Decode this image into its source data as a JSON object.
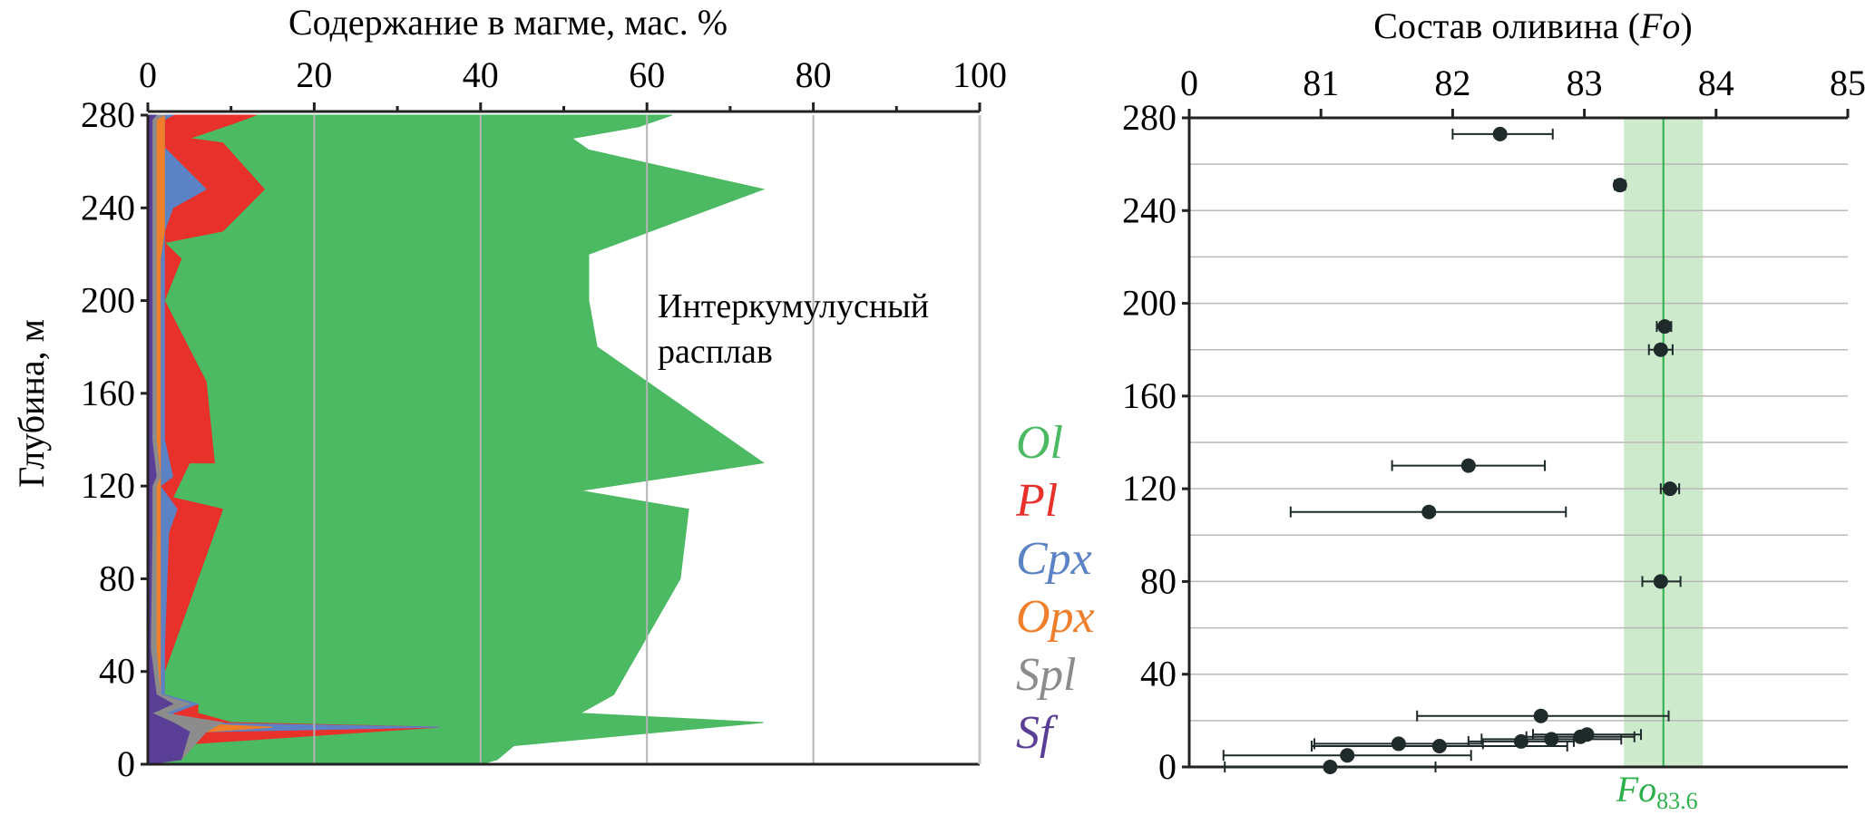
{
  "chart_data": [
    {
      "type": "area",
      "title": "",
      "xlabel": "Содержание в магме, мас. %",
      "ylabel": "Глубина, м",
      "xlim": [
        0,
        100
      ],
      "ylim": [
        0,
        280
      ],
      "x_ticks": [
        "0",
        "20",
        "40",
        "60",
        "80",
        "100"
      ],
      "y_ticks": [
        "0",
        "40",
        "80",
        "120",
        "160",
        "200",
        "240",
        "280"
      ],
      "annotation": [
        "Интеркумулусный",
        "расплав"
      ],
      "legend_placement": "right",
      "stacking": "cumulative, boundary values in wt. %",
      "series": [
        {
          "name": "Sf",
          "color": "#5b3f96",
          "points": [
            [
              0,
              0
            ],
            [
              4,
              2
            ],
            [
              5,
              14
            ],
            [
              3,
              18
            ],
            [
              0.5,
              22
            ],
            [
              3,
              26
            ],
            [
              1,
              30
            ],
            [
              0.3,
              50
            ],
            [
              0.5,
              100
            ],
            [
              0.5,
              116
            ],
            [
              0.5,
              120
            ],
            [
              1,
              124
            ],
            [
              0.5,
              140
            ],
            [
              0.5,
              180
            ],
            [
              0.5,
              240
            ],
            [
              0.5,
              278
            ],
            [
              1,
              280
            ]
          ]
        },
        {
          "name": "Spl",
          "color": "#8c8c8c",
          "points": [
            [
              0,
              0
            ],
            [
              4,
              2
            ],
            [
              7,
              14
            ],
            [
              9,
              18
            ],
            [
              2,
              22
            ],
            [
              5,
              26
            ],
            [
              1.5,
              30
            ],
            [
              1,
              50
            ],
            [
              1,
              100
            ],
            [
              1,
              116
            ],
            [
              1,
              120
            ],
            [
              1.5,
              124
            ],
            [
              1,
              140
            ],
            [
              1,
              180
            ],
            [
              1,
              240
            ],
            [
              1,
              278
            ],
            [
              2,
              280
            ]
          ]
        },
        {
          "name": "Opx",
          "color": "#ef7f2b",
          "points": [
            [
              0,
              0
            ],
            [
              4,
              2
            ],
            [
              7,
              14
            ],
            [
              15,
              16
            ],
            [
              3,
              18
            ],
            [
              2,
              22
            ],
            [
              5,
              26
            ],
            [
              1.5,
              30
            ],
            [
              1.5,
              50
            ],
            [
              1.5,
              100
            ],
            [
              1.5,
              116
            ],
            [
              1.5,
              120
            ],
            [
              1.5,
              124
            ],
            [
              1.5,
              140
            ],
            [
              1.5,
              180
            ],
            [
              1.5,
              218
            ],
            [
              2,
              230
            ],
            [
              2,
              240
            ],
            [
              2,
              252
            ],
            [
              2,
              266
            ],
            [
              2,
              278
            ],
            [
              2,
              280
            ]
          ]
        },
        {
          "name": "Cpx",
          "color": "#5b82c4",
          "points": [
            [
              0,
              0
            ],
            [
              4,
              2
            ],
            [
              7,
              14
            ],
            [
              35,
              16
            ],
            [
              3,
              18
            ],
            [
              3,
              22
            ],
            [
              6,
              26
            ],
            [
              2,
              30
            ],
            [
              2,
              50
            ],
            [
              2.5,
              100
            ],
            [
              3.5,
              110
            ],
            [
              1.5,
              120
            ],
            [
              3,
              124
            ],
            [
              2,
              140
            ],
            [
              2,
              180
            ],
            [
              2,
              218
            ],
            [
              2,
              230
            ],
            [
              3,
              240
            ],
            [
              7,
              248
            ],
            [
              2,
              266
            ],
            [
              2,
              278
            ],
            [
              3,
              280
            ]
          ]
        },
        {
          "name": "Pl",
          "color": "#e8312b",
          "points": [
            [
              1,
              0
            ],
            [
              1,
              1
            ],
            [
              2,
              3
            ],
            [
              2,
              8
            ],
            [
              35,
              16
            ],
            [
              10,
              18
            ],
            [
              6,
              22
            ],
            [
              6,
              26
            ],
            [
              2,
              30
            ],
            [
              2,
              40
            ],
            [
              4,
              60
            ],
            [
              6,
              80
            ],
            [
              9,
              110
            ],
            [
              3,
              115
            ],
            [
              5,
              130
            ],
            [
              8,
              130
            ],
            [
              7,
              165
            ],
            [
              2,
              200
            ],
            [
              4,
              218
            ],
            [
              2,
              225
            ],
            [
              9,
              230
            ],
            [
              14,
              248
            ],
            [
              9,
              268
            ],
            [
              5,
              270
            ],
            [
              10,
              276
            ],
            [
              13,
              280
            ]
          ]
        },
        {
          "name": "Ol",
          "color": "#4cb963",
          "points": [
            [
              4,
              0
            ],
            [
              40,
              0
            ],
            [
              42,
              2
            ],
            [
              44,
              8
            ],
            [
              74,
              18
            ],
            [
              52,
              22
            ],
            [
              56,
              30
            ],
            [
              64,
              80
            ],
            [
              65,
              110
            ],
            [
              52,
              118
            ],
            [
              74,
              130
            ],
            [
              54,
              180
            ],
            [
              53,
              200
            ],
            [
              53,
              220
            ],
            [
              74,
              248
            ],
            [
              53,
              265
            ],
            [
              51,
              270
            ],
            [
              59,
              275
            ],
            [
              63,
              280
            ]
          ]
        }
      ],
      "legend": [
        "Ol",
        "Pl",
        "Cpx",
        "Opx",
        "Spl",
        "Sf"
      ]
    },
    {
      "type": "scatter",
      "title": "",
      "xlabel": "Состав оливина (Fo)",
      "ylabel": "",
      "xlim": [
        80,
        85
      ],
      "ylim": [
        0,
        280
      ],
      "x_ticks": [
        "0",
        "81",
        "82",
        "83",
        "84",
        "85"
      ],
      "y_ticks": [
        "0",
        "40",
        "80",
        "120",
        "160",
        "200",
        "240",
        "280"
      ],
      "reference_line": {
        "x": 83.6,
        "band": [
          83.3,
          83.9
        ],
        "label_main": "Fo",
        "label_sub": "83.6",
        "color": "#2daf4a"
      },
      "gridlines_y": [
        0,
        20,
        40,
        60,
        80,
        100,
        120,
        140,
        160,
        180,
        200,
        220,
        240,
        260,
        280
      ],
      "points": [
        {
          "x": 82.36,
          "y": 273,
          "xmin": 82.0,
          "xmax": 82.76
        },
        {
          "x": 83.27,
          "y": 251,
          "xmin": 83.23,
          "xmax": 83.31
        },
        {
          "x": 83.61,
          "y": 190,
          "xmin": 83.55,
          "xmax": 83.66
        },
        {
          "x": 83.58,
          "y": 180,
          "xmin": 83.49,
          "xmax": 83.67
        },
        {
          "x": 82.12,
          "y": 130,
          "xmin": 81.54,
          "xmax": 82.7
        },
        {
          "x": 83.65,
          "y": 120,
          "xmin": 83.58,
          "xmax": 83.72
        },
        {
          "x": 81.82,
          "y": 110,
          "xmin": 80.77,
          "xmax": 82.86
        },
        {
          "x": 83.58,
          "y": 80,
          "xmin": 83.44,
          "xmax": 83.73
        },
        {
          "x": 82.67,
          "y": 22,
          "xmin": 81.73,
          "xmax": 83.64
        },
        {
          "x": 83.02,
          "y": 14,
          "xmin": 82.61,
          "xmax": 83.43
        },
        {
          "x": 82.97,
          "y": 13,
          "xmin": 82.56,
          "xmax": 83.38
        },
        {
          "x": 82.75,
          "y": 12,
          "xmin": 82.22,
          "xmax": 83.28
        },
        {
          "x": 82.52,
          "y": 11,
          "xmin": 82.12,
          "xmax": 82.92
        },
        {
          "x": 81.59,
          "y": 10,
          "xmin": 80.95,
          "xmax": 82.23
        },
        {
          "x": 81.9,
          "y": 9,
          "xmin": 80.93,
          "xmax": 82.87
        },
        {
          "x": 81.2,
          "y": 5,
          "xmin": 80.26,
          "xmax": 82.14
        },
        {
          "x": 81.07,
          "y": 0,
          "xmin": 80.27,
          "xmax": 81.87
        }
      ]
    }
  ]
}
